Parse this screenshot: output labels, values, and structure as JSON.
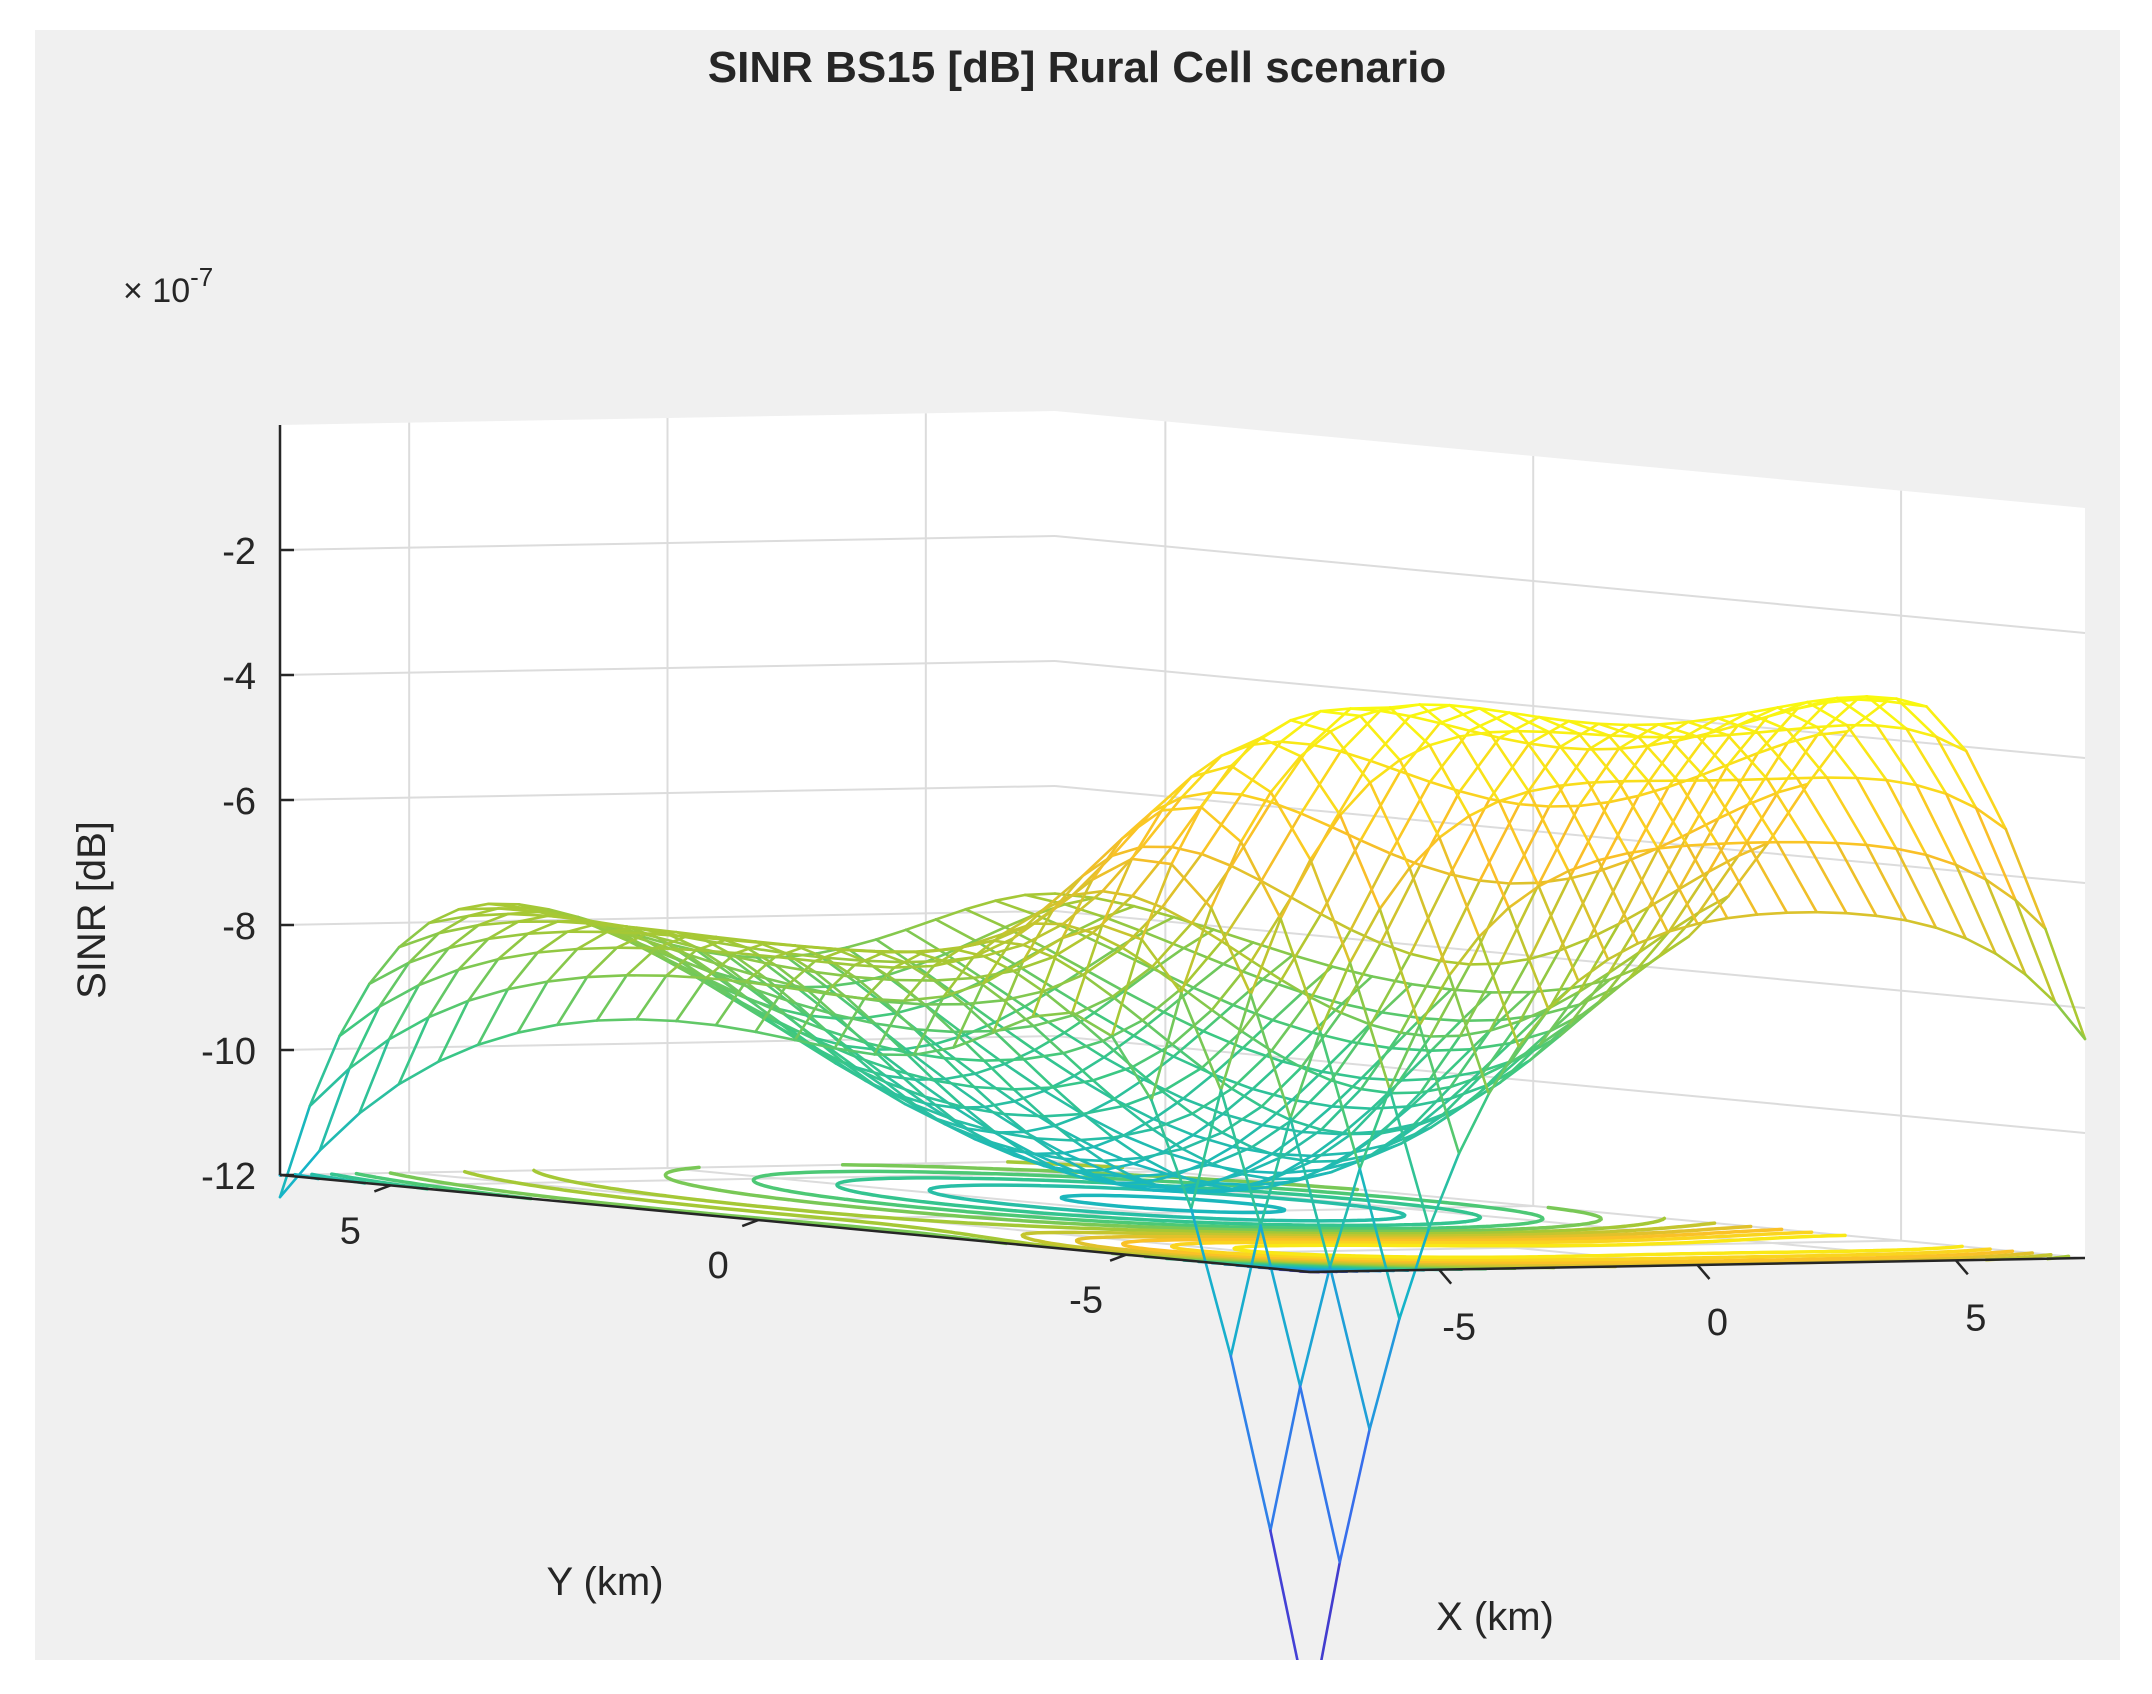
{
  "chart_data": {
    "type": "surface-mesh-with-contour",
    "title": "SINR BS15 [dB] Rural Cell scenario",
    "xlabel": "X (km)",
    "ylabel": "Y (km)",
    "zlabel": "SINR [dB]",
    "z_exponent_label": "× 10",
    "z_exponent_power": "-7",
    "xlim": [
      -7.5,
      7.5
    ],
    "ylim": [
      -7.5,
      6.5
    ],
    "zlim": [
      -12,
      0
    ],
    "x_ticks": [
      "-5",
      "0",
      "5"
    ],
    "y_ticks": [
      "5",
      "0",
      "-5"
    ],
    "z_ticks": [
      "-2",
      "-4",
      "-6",
      "-8",
      "-10",
      "-12"
    ],
    "x_tick_values": [
      -5,
      0,
      5
    ],
    "y_tick_values": [
      5,
      0,
      -5
    ],
    "z_tick_values": [
      -2,
      -4,
      -6,
      -8,
      -10,
      -12
    ],
    "mesh_lines_per_axis": 27,
    "contour_levels": 20,
    "colormap": "parula",
    "grid": true,
    "surface_description": "Bowl-shaped minimum near X=2, Y=1 at about -11.8; ridge along Y=-5 edge near -2 to -5"
  },
  "colors": {
    "figure_bg": "#f0f0f0",
    "axes_bg": "#ffffff",
    "grid": "#dcdcdc",
    "axis": "#262626",
    "parula_low": "#3e26a8",
    "parula_high": "#f9fb0e"
  }
}
